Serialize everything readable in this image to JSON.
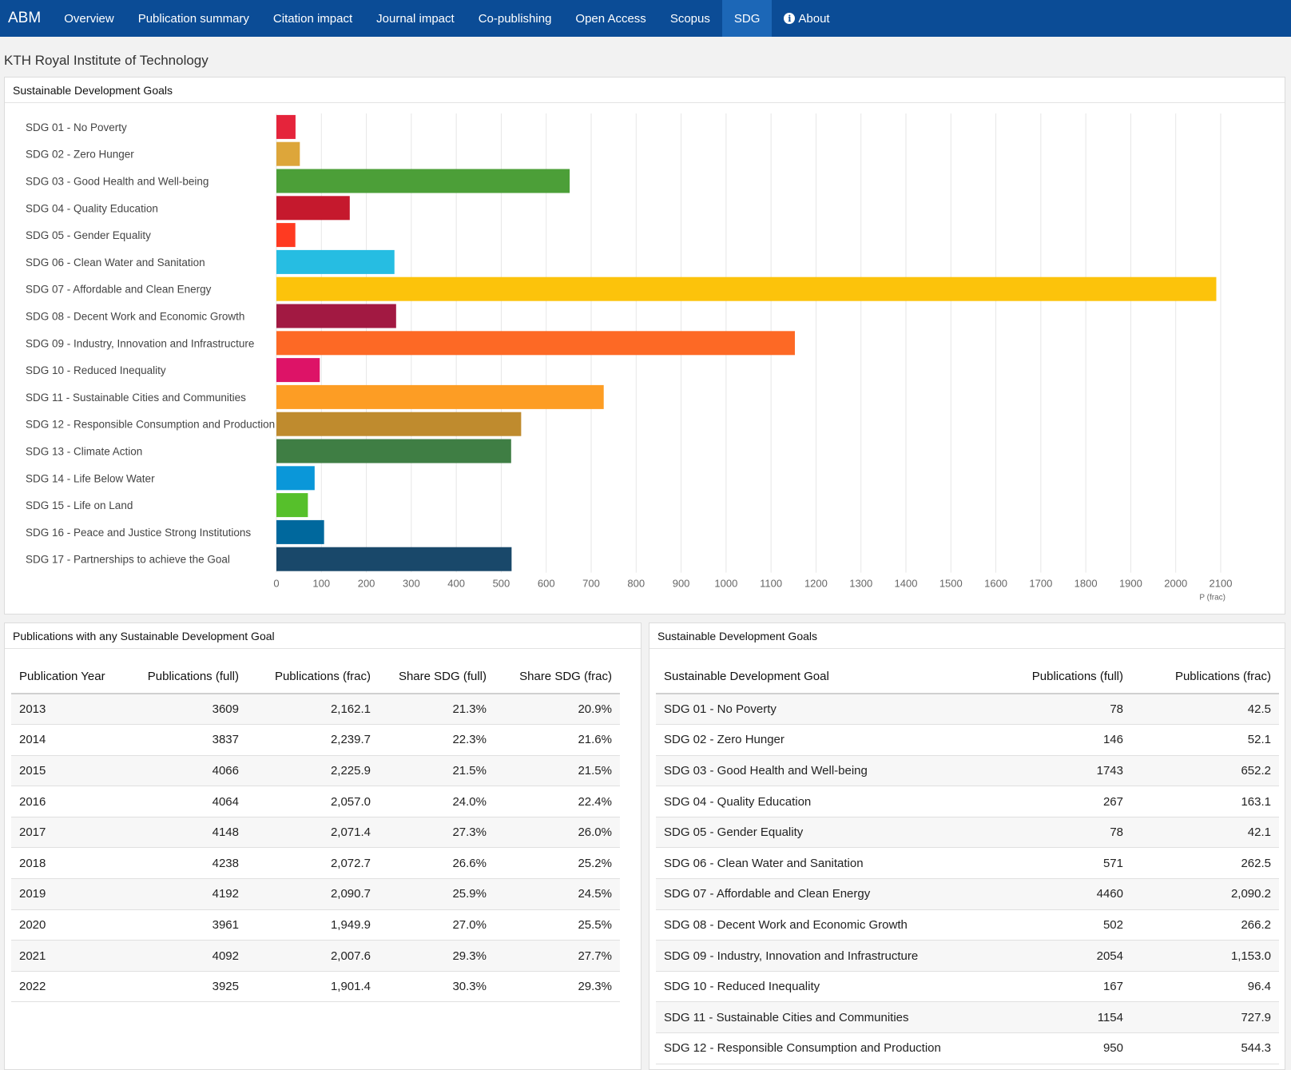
{
  "nav": {
    "brand": "ABM",
    "items": [
      "Overview",
      "Publication summary",
      "Citation impact",
      "Journal impact",
      "Co-publishing",
      "Open Access",
      "Scopus",
      "SDG",
      "About"
    ],
    "active": "SDG"
  },
  "page_title": "KTH Royal Institute of Technology",
  "chart_card": {
    "title": "Sustainable Development Goals"
  },
  "chart_data": {
    "type": "bar",
    "orientation": "horizontal",
    "categories": [
      "SDG 01 - No Poverty",
      "SDG 02 - Zero Hunger",
      "SDG 03 - Good Health and Well-being",
      "SDG 04 - Quality Education",
      "SDG 05 - Gender Equality",
      "SDG 06 - Clean Water and Sanitation",
      "SDG 07 - Affordable and Clean Energy",
      "SDG 08 - Decent Work and Economic Growth",
      "SDG 09 - Industry, Innovation and Infrastructure",
      "SDG 10 - Reduced Inequality",
      "SDG 11 - Sustainable Cities and Communities",
      "SDG 12 - Responsible Consumption and Production",
      "SDG 13 - Climate Action",
      "SDG 14 - Life Below Water",
      "SDG 15 - Life on Land",
      "SDG 16 - Peace and Justice Strong Institutions",
      "SDG 17 - Partnerships to achieve the Goal"
    ],
    "values": [
      42.5,
      52.1,
      652.2,
      163.1,
      42.1,
      262.5,
      2090.2,
      266.2,
      1153.0,
      96.4,
      727.9,
      544.3,
      522,
      85,
      70,
      106,
      523
    ],
    "colors": [
      "#e5243b",
      "#dda63a",
      "#4c9f38",
      "#c5192d",
      "#ff3a21",
      "#26bde2",
      "#fcc30b",
      "#a21942",
      "#fd6925",
      "#dd1367",
      "#fd9d24",
      "#bf8b2e",
      "#3f7e44",
      "#0a97d9",
      "#56c02b",
      "#00689d",
      "#19486a"
    ],
    "xticks": [
      "0",
      "100",
      "200",
      "300",
      "400",
      "500",
      "600",
      "700",
      "800",
      "900",
      "1000",
      "1100",
      "1200",
      "1300",
      "1400",
      "1500",
      "1600",
      "1700",
      "1800",
      "1900",
      "2000",
      "2100"
    ],
    "xlim": [
      0,
      2100
    ],
    "xlabel": "P (frac)",
    "grid": true
  },
  "pub_card": {
    "title": "Publications with any Sustainable Development Goal",
    "headers": [
      "Publication Year",
      "Publications (full)",
      "Publications (frac)",
      "Share SDG (full)",
      "Share SDG (frac)"
    ],
    "rows": [
      [
        "2013",
        "3609",
        "2,162.1",
        "21.3%",
        "20.9%"
      ],
      [
        "2014",
        "3837",
        "2,239.7",
        "22.3%",
        "21.6%"
      ],
      [
        "2015",
        "4066",
        "2,225.9",
        "21.5%",
        "21.5%"
      ],
      [
        "2016",
        "4064",
        "2,057.0",
        "24.0%",
        "22.4%"
      ],
      [
        "2017",
        "4148",
        "2,071.4",
        "27.3%",
        "26.0%"
      ],
      [
        "2018",
        "4238",
        "2,072.7",
        "26.6%",
        "25.2%"
      ],
      [
        "2019",
        "4192",
        "2,090.7",
        "25.9%",
        "24.5%"
      ],
      [
        "2020",
        "3961",
        "1,949.9",
        "27.0%",
        "25.5%"
      ],
      [
        "2021",
        "4092",
        "2,007.6",
        "29.3%",
        "27.7%"
      ],
      [
        "2022",
        "3925",
        "1,901.4",
        "30.3%",
        "29.3%"
      ]
    ]
  },
  "sdg_card": {
    "title": "Sustainable Development Goals",
    "headers": [
      "Sustainable Development Goal",
      "Publications (full)",
      "Publications (frac)"
    ],
    "rows": [
      [
        "SDG 01 - No Poverty",
        "78",
        "42.5"
      ],
      [
        "SDG 02 - Zero Hunger",
        "146",
        "52.1"
      ],
      [
        "SDG 03 - Good Health and Well-being",
        "1743",
        "652.2"
      ],
      [
        "SDG 04 - Quality Education",
        "267",
        "163.1"
      ],
      [
        "SDG 05 - Gender Equality",
        "78",
        "42.1"
      ],
      [
        "SDG 06 - Clean Water and Sanitation",
        "571",
        "262.5"
      ],
      [
        "SDG 07 - Affordable and Clean Energy",
        "4460",
        "2,090.2"
      ],
      [
        "SDG 08 - Decent Work and Economic Growth",
        "502",
        "266.2"
      ],
      [
        "SDG 09 - Industry, Innovation and Infrastructure",
        "2054",
        "1,153.0"
      ],
      [
        "SDG 10 - Reduced Inequality",
        "167",
        "96.4"
      ],
      [
        "SDG 11 - Sustainable Cities and Communities",
        "1154",
        "727.9"
      ],
      [
        "SDG 12 - Responsible Consumption and Production",
        "950",
        "544.3"
      ]
    ]
  }
}
